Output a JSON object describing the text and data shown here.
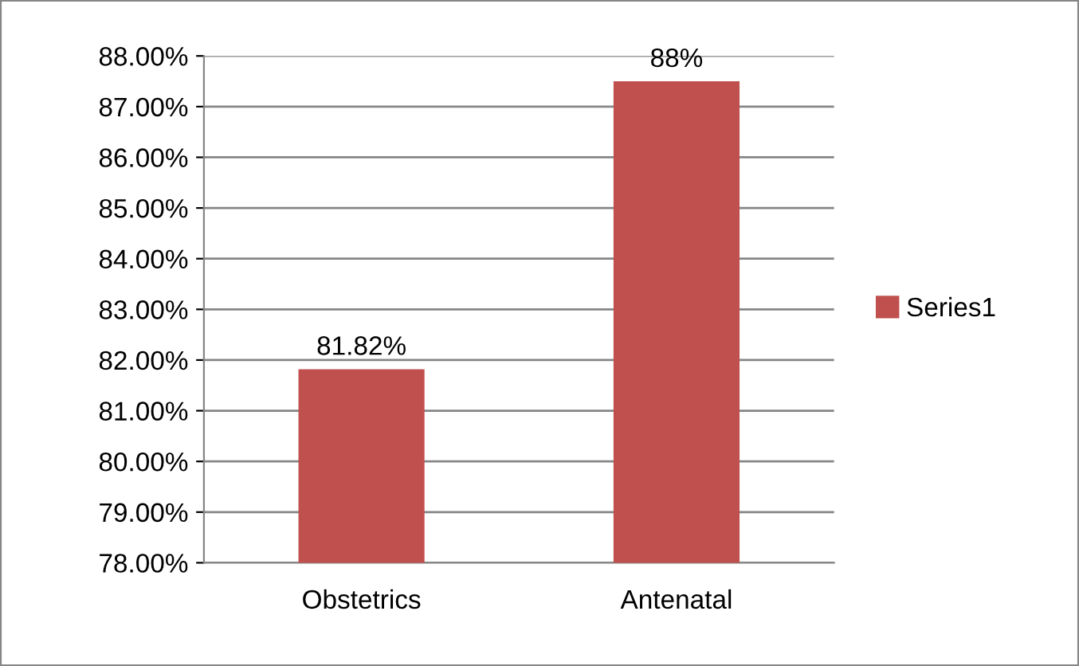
{
  "chart_data": {
    "type": "bar",
    "categories": [
      "Obstetrics",
      "Antenatal"
    ],
    "series": [
      {
        "name": "Series1",
        "color": "#c0504d",
        "values": [
          81.82,
          87.5
        ],
        "value_labels": [
          "81.82%",
          "88%"
        ]
      }
    ],
    "ylim": [
      78,
      88
    ],
    "yticks": [
      {
        "value": 78,
        "label": "78.00%"
      },
      {
        "value": 79,
        "label": "79.00%"
      },
      {
        "value": 80,
        "label": "80.00%"
      },
      {
        "value": 81,
        "label": "81.00%"
      },
      {
        "value": 82,
        "label": "82.00%"
      },
      {
        "value": 83,
        "label": "83.00%"
      },
      {
        "value": 84,
        "label": "84.00%"
      },
      {
        "value": 85,
        "label": "85.00%"
      },
      {
        "value": 86,
        "label": "86.00%"
      },
      {
        "value": 87,
        "label": "87.00%"
      },
      {
        "value": 88,
        "label": "88.00%"
      }
    ],
    "grid": "y",
    "legend": "right"
  }
}
